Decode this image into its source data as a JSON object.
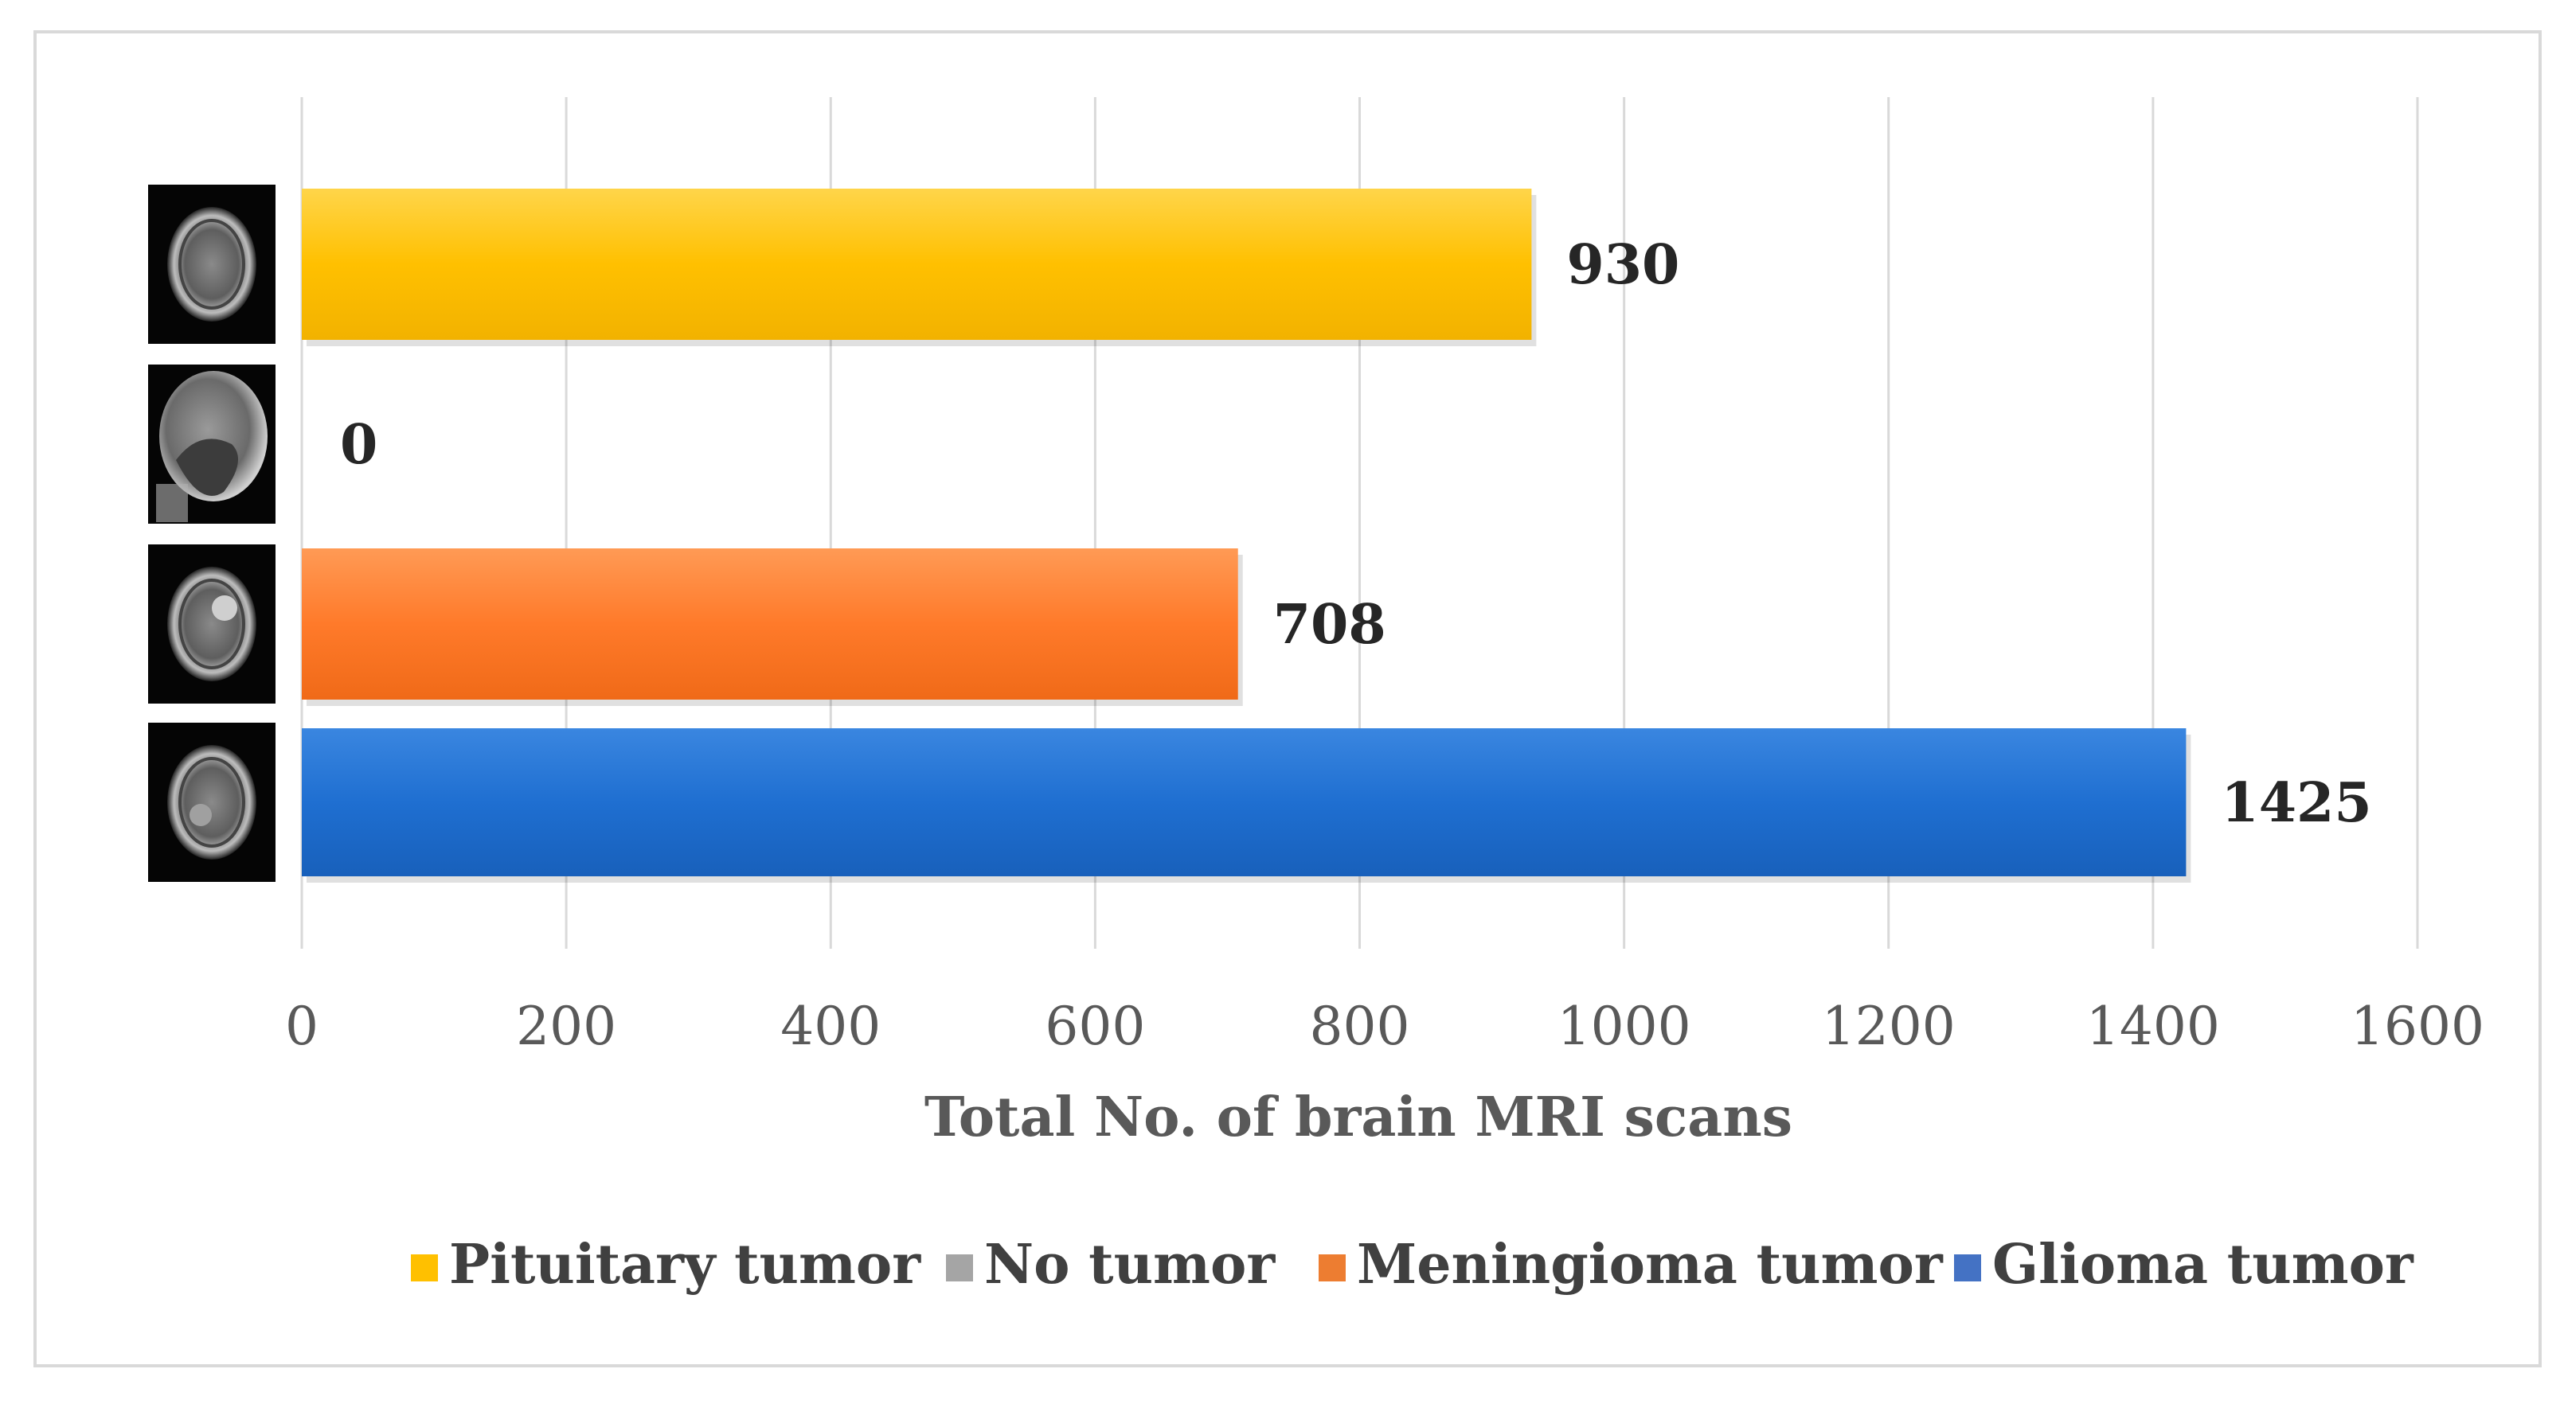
{
  "chart_data": {
    "type": "bar",
    "orientation": "horizontal",
    "categories": [
      "Pituitary tumor",
      "No tumor",
      "Meningioma tumor",
      "Glioma tumor"
    ],
    "values": [
      930,
      0,
      708,
      1425
    ],
    "colors": [
      "#ffc000",
      "#a5a5a5",
      "#ed7d31",
      "#4472c4"
    ],
    "data_labels": [
      "930",
      "0",
      "708",
      "1425"
    ],
    "xlabel": "Total No. of brain MRI scans",
    "ylabel": "",
    "xlim": [
      0,
      1600
    ],
    "xticks": [
      "0",
      "200",
      "400",
      "600",
      "800",
      "1000",
      "1200",
      "1400",
      "1600"
    ],
    "grid": true,
    "legend": {
      "position": "bottom",
      "entries": [
        "Pituitary tumor",
        "No tumor",
        "Meningioma tumor",
        "Glioma tumor"
      ]
    },
    "row_images": [
      "brain-mri-axial",
      "brain-mri-sagittal",
      "brain-mri-axial",
      "brain-mri-axial"
    ]
  }
}
